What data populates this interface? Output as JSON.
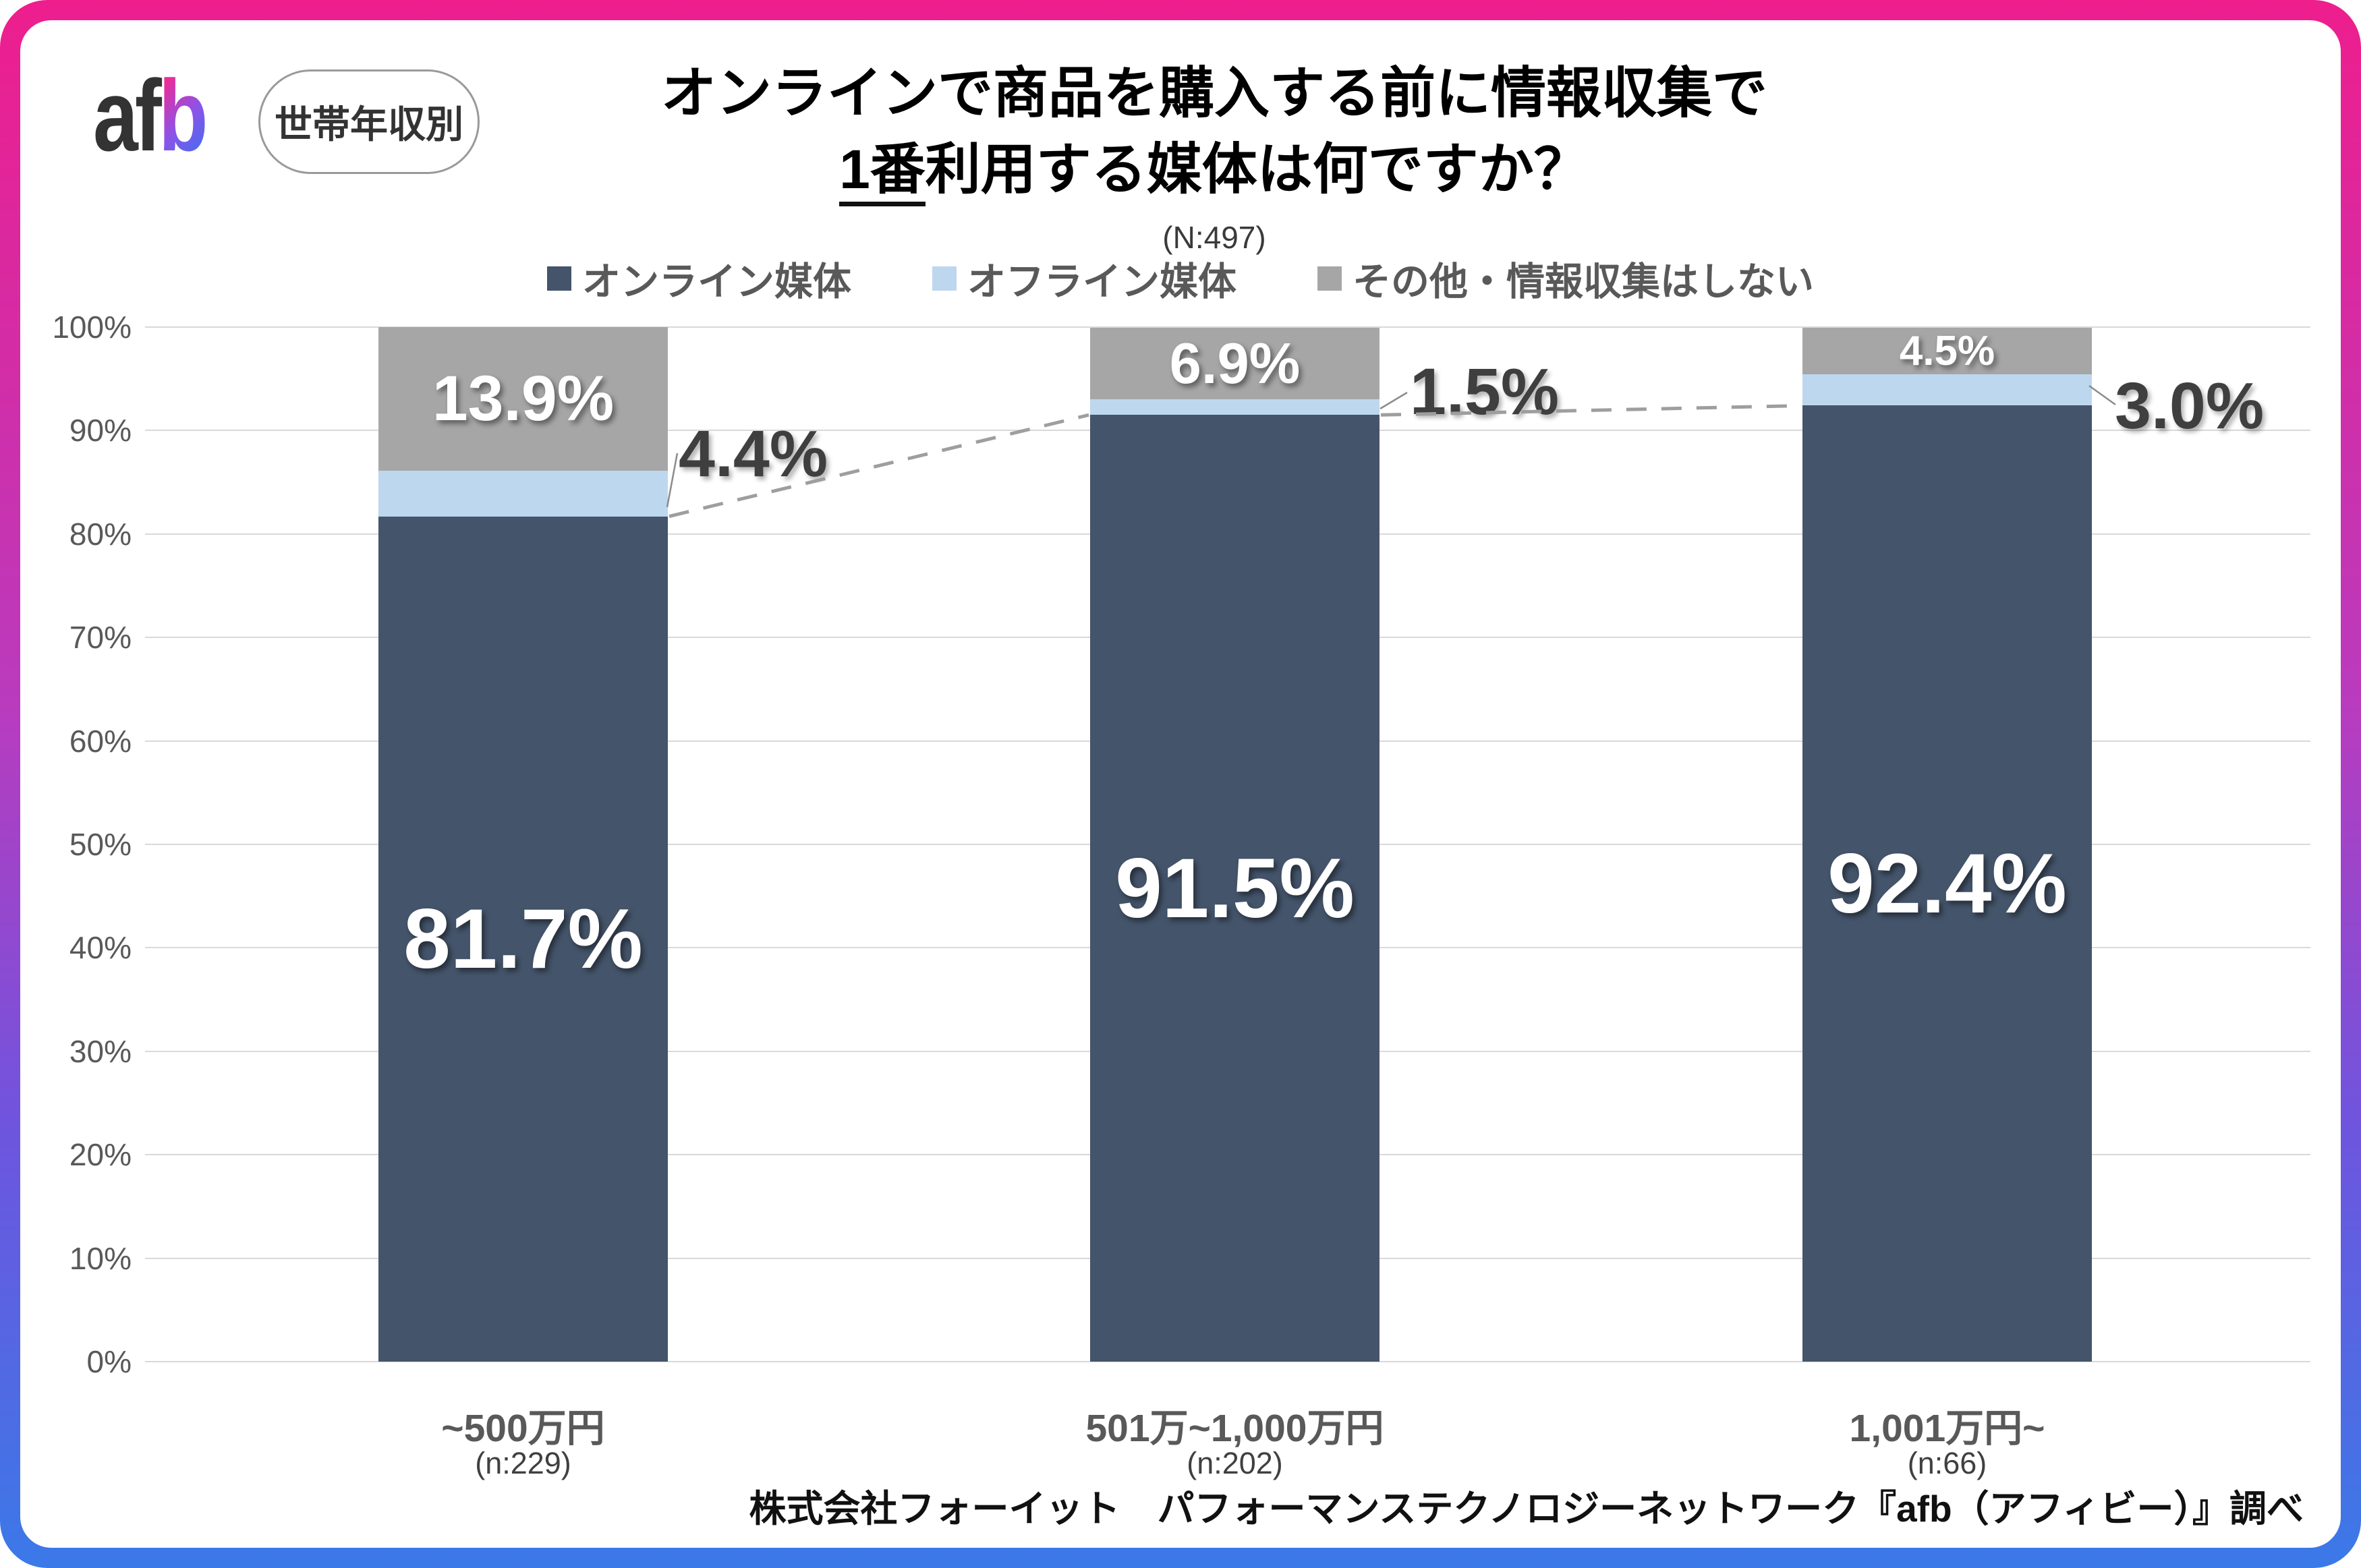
{
  "frame": {
    "gradient_top": "#EE1E8D",
    "gradient_bottom": "#3B79E8"
  },
  "header": {
    "logo_part_dark": "af",
    "logo_part_gradient": "b",
    "badge": "世帯年収別",
    "title_line1": "オンラインで商品を購入する前に情報収集で",
    "title_line2_underlined": "1番",
    "title_line2_rest": "利用する媒体は何ですか？",
    "sample_size": "(N:497)"
  },
  "legend": {
    "items": [
      {
        "label": "オンライン媒体",
        "color": "#44546A"
      },
      {
        "label": "オフライン媒体",
        "color": "#BDD7EE"
      },
      {
        "label": "その他・情報収集はしない",
        "color": "#A6A6A6"
      }
    ]
  },
  "chart_data": {
    "type": "bar",
    "stacked": true,
    "unit": "%",
    "title": "オンラインで商品を購入する前に情報収集で1番利用する媒体は何ですか？",
    "total_sample": "(N:497)",
    "categories": [
      "~500万円",
      "501万~1,000万円",
      "1,001万円~"
    ],
    "category_samples": [
      "(n:229)",
      "(n:202)",
      "(n:66)"
    ],
    "series": [
      {
        "name": "オンライン媒体",
        "color": "#44546A",
        "values": [
          81.7,
          91.5,
          92.4
        ]
      },
      {
        "name": "オフライン媒体",
        "color": "#BDD7EE",
        "values": [
          4.4,
          1.5,
          3.0
        ]
      },
      {
        "name": "その他・情報収集はしない",
        "color": "#A6A6A6",
        "values": [
          13.9,
          6.9,
          4.5
        ]
      }
    ],
    "y_ticks": [
      "0%",
      "10%",
      "20%",
      "30%",
      "40%",
      "50%",
      "60%",
      "70%",
      "80%",
      "90%",
      "100%"
    ],
    "ylim": [
      0,
      100
    ],
    "grid": true,
    "legend_position": "top",
    "annotation_line": "dashed connector across tops of オンライン媒体 segments"
  },
  "footer": {
    "source": "株式会社フォーイット　パフォーマンステクノロジーネットワーク『afb（アフィビー）』調べ"
  }
}
